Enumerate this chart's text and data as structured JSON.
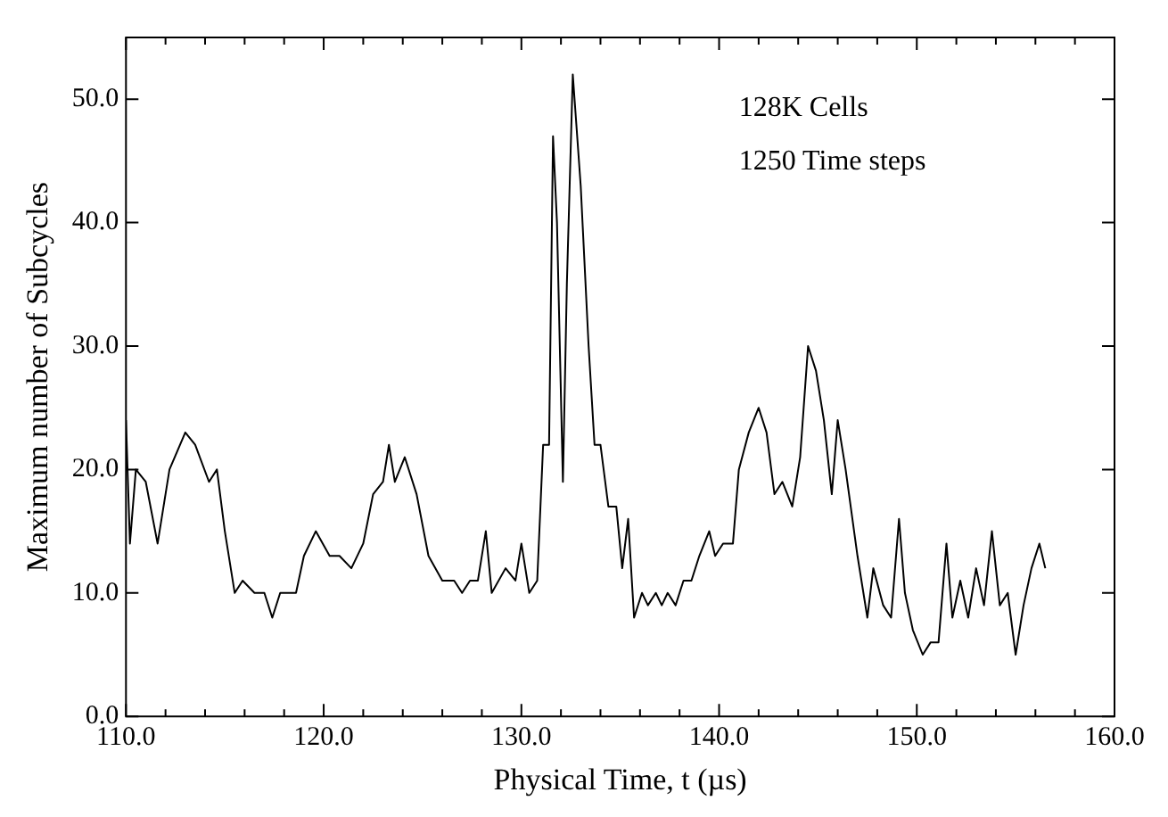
{
  "chart_data": {
    "type": "line",
    "xlabel": "Physical Time, t (µs)",
    "ylabel": "Maximum number of Subcycles",
    "annotations": [
      "128K Cells",
      "1250 Time steps"
    ],
    "x": [
      110.0,
      110.2,
      110.5,
      111.0,
      111.6,
      112.2,
      113.0,
      113.5,
      114.2,
      114.6,
      115.0,
      115.5,
      115.9,
      116.5,
      117.0,
      117.4,
      117.8,
      118.6,
      119.0,
      119.6,
      120.3,
      120.8,
      121.4,
      122.0,
      122.5,
      123.0,
      123.3,
      123.6,
      124.1,
      124.7,
      125.3,
      126.0,
      126.6,
      127.0,
      127.4,
      127.8,
      128.2,
      128.5,
      129.2,
      129.7,
      130.0,
      130.4,
      130.8,
      131.1,
      131.4,
      131.6,
      131.8,
      132.1,
      132.3,
      132.6,
      133.0,
      133.4,
      133.7,
      134.0,
      134.4,
      134.8,
      135.1,
      135.4,
      135.7,
      136.1,
      136.4,
      136.8,
      137.1,
      137.4,
      137.8,
      138.2,
      138.6,
      139.0,
      139.5,
      139.8,
      140.2,
      140.7,
      141.0,
      141.5,
      142.0,
      142.4,
      142.8,
      143.2,
      143.7,
      144.1,
      144.5,
      144.9,
      145.3,
      145.7,
      146.0,
      146.4,
      147.0,
      147.5,
      147.8,
      148.3,
      148.7,
      149.1,
      149.4,
      149.8,
      150.3,
      150.7,
      151.1,
      151.5,
      151.8,
      152.2,
      152.6,
      153.0,
      153.4,
      153.8,
      154.2,
      154.6,
      155.0,
      155.4,
      155.8,
      156.2,
      156.5
    ],
    "series": [
      {
        "color": "#000000",
        "values": [
          24,
          14,
          20,
          19,
          14,
          20,
          23,
          22,
          19,
          20,
          15,
          10,
          11,
          10,
          10,
          8,
          10,
          10,
          13,
          15,
          13,
          13,
          12,
          14,
          18,
          19,
          22,
          19,
          21,
          18,
          13,
          11,
          11,
          10,
          11,
          11,
          15,
          10,
          12,
          11,
          14,
          10,
          11,
          22,
          22,
          47,
          40,
          19,
          35,
          52,
          43,
          30,
          22,
          22,
          17,
          17,
          12,
          16,
          8,
          10,
          9,
          10,
          9,
          10,
          9,
          11,
          11,
          13,
          15,
          13,
          14,
          14,
          20,
          23,
          25,
          23,
          18,
          19,
          17,
          21,
          30,
          28,
          24,
          18,
          24,
          20,
          13,
          8,
          12,
          9,
          8,
          16,
          10,
          7,
          5,
          6,
          6,
          14,
          8,
          11,
          8,
          12,
          9,
          15,
          9,
          10,
          5,
          9,
          12,
          14,
          12
        ]
      }
    ],
    "xlim": [
      110,
      160
    ],
    "ylim": [
      0,
      55
    ],
    "xticks": [
      {
        "value": 110,
        "label": "110.0"
      },
      {
        "value": 112,
        "label": null
      },
      {
        "value": 114,
        "label": null
      },
      {
        "value": 116,
        "label": null
      },
      {
        "value": 118,
        "label": null
      },
      {
        "value": 120,
        "label": "120.0"
      },
      {
        "value": 122,
        "label": null
      },
      {
        "value": 124,
        "label": null
      },
      {
        "value": 126,
        "label": null
      },
      {
        "value": 128,
        "label": null
      },
      {
        "value": 130,
        "label": "130.0"
      },
      {
        "value": 132,
        "label": null
      },
      {
        "value": 134,
        "label": null
      },
      {
        "value": 136,
        "label": null
      },
      {
        "value": 138,
        "label": null
      },
      {
        "value": 140,
        "label": "140.0"
      },
      {
        "value": 142,
        "label": null
      },
      {
        "value": 144,
        "label": null
      },
      {
        "value": 146,
        "label": null
      },
      {
        "value": 148,
        "label": null
      },
      {
        "value": 150,
        "label": "150.0"
      },
      {
        "value": 152,
        "label": null
      },
      {
        "value": 154,
        "label": null
      },
      {
        "value": 156,
        "label": null
      },
      {
        "value": 158,
        "label": null
      },
      {
        "value": 160,
        "label": "160.0"
      }
    ],
    "yticks": [
      {
        "value": 0,
        "label": "0.0"
      },
      {
        "value": 10,
        "label": "10.0"
      },
      {
        "value": 20,
        "label": "20.0"
      },
      {
        "value": 30,
        "label": "30.0"
      },
      {
        "value": 40,
        "label": "40.0"
      },
      {
        "value": 50,
        "label": "50.0"
      }
    ],
    "grid": false,
    "legend": false,
    "marker": "none",
    "line_style": "solid"
  }
}
